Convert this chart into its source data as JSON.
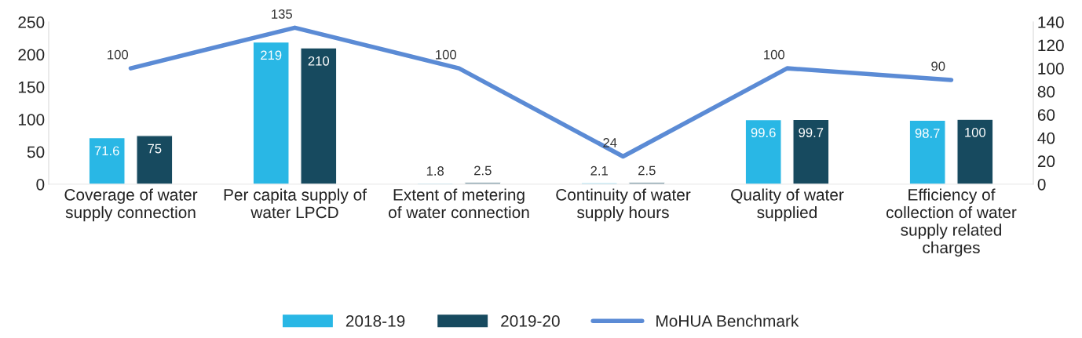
{
  "chart_data": {
    "type": "bar",
    "categories": [
      "Coverage of water\nsupply connection",
      "Per capita supply of\nwater LPCD",
      "Extent of metering\nof water connection",
      "Continuity of water\nsupply hours",
      "Quality of water\nsupplied",
      "Efficiency of\ncollection of water\nsupply related\ncharges"
    ],
    "series": [
      {
        "name": "2018-19",
        "color": "#29b7e5",
        "values": [
          71.6,
          219,
          1.8,
          2.1,
          99.6,
          98.7
        ]
      },
      {
        "name": "2019-20",
        "color": "#174a5f",
        "values": [
          75,
          210,
          2.5,
          2.5,
          99.7,
          100
        ]
      },
      {
        "name": "MoHUA Benchmark",
        "type": "line",
        "axis": "y2",
        "color": "#5b8bd5",
        "values": [
          100,
          135,
          100,
          24,
          100,
          90
        ]
      }
    ],
    "ylim": [
      0,
      250
    ],
    "yticks": [
      0,
      50,
      100,
      150,
      200,
      250
    ],
    "y2lim": [
      0,
      140
    ],
    "y2ticks": [
      0,
      20,
      40,
      60,
      80,
      100,
      120,
      140
    ],
    "data_labels": true,
    "legend": "bottom",
    "grid": false
  }
}
